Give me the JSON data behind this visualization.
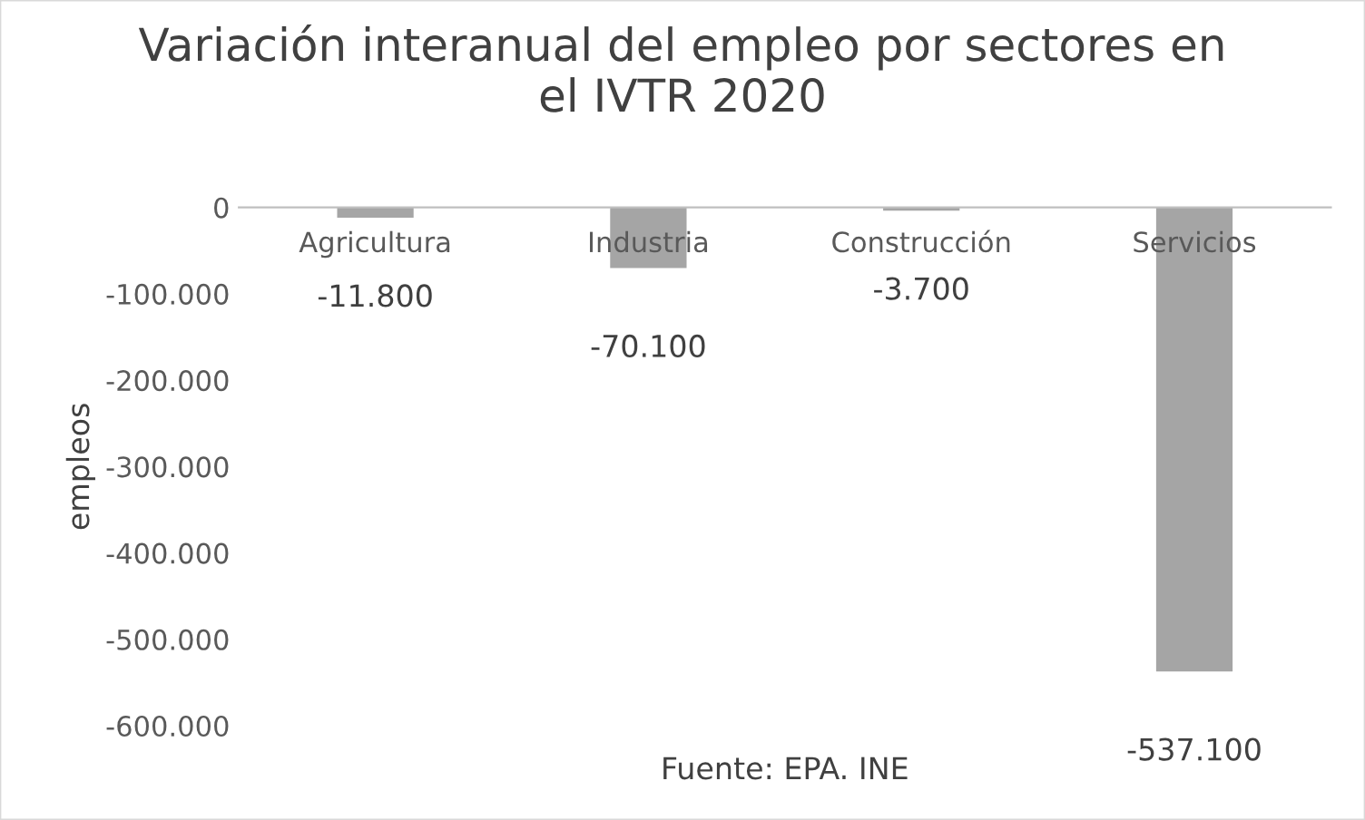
{
  "chart_data": {
    "type": "bar",
    "title": "Variación interanual del empleo por sectores en\nel IVTR 2020",
    "ylabel": "empleos",
    "categories": [
      "Agricultura",
      "Industria",
      "Construcción",
      "Servicios"
    ],
    "values": [
      -11800,
      -70100,
      -3700,
      -537100
    ],
    "value_labels": [
      "-11.800",
      "-70.100",
      "-3.700",
      "-537.100"
    ],
    "color": "#a5a5a5",
    "ylim": [
      -600000,
      0
    ],
    "yticks": [
      {
        "value": 0,
        "label": "0"
      },
      {
        "value": -100000,
        "label": "-100.000"
      },
      {
        "value": -200000,
        "label": "-200.000"
      },
      {
        "value": -300000,
        "label": "-300.000"
      },
      {
        "value": -400000,
        "label": "-400.000"
      },
      {
        "value": -500000,
        "label": "-500.000"
      },
      {
        "value": -600000,
        "label": "-600.000"
      }
    ],
    "grid": false,
    "legend": false,
    "annotations": [
      "Fuente: EPA. INE"
    ]
  }
}
